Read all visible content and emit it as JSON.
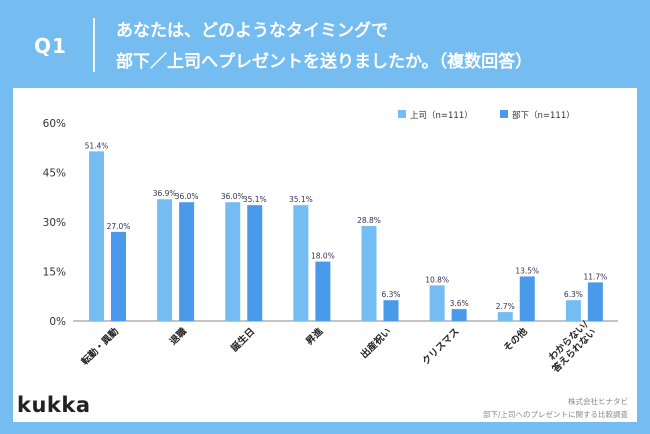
{
  "header": {
    "q_label": "Q1",
    "title_line1": "あなたは、どのようなタイミングで",
    "title_line2": "部下／上司へプレゼントを送りましたか。（複数回答）"
  },
  "brand": {
    "logo": "kukka"
  },
  "source": {
    "line1": "株式会社ヒナタビ",
    "line2": "部下/上司へのプレゼントに関する比較調査"
  },
  "colors": {
    "background": "#75bdf1",
    "boss": "#74bcf1",
    "subordinate": "#4a9aec",
    "text": "#333333"
  },
  "chart_data": {
    "type": "bar",
    "categories": [
      "転勤・異動",
      "退職",
      "誕生日",
      "昇進",
      "出産祝い",
      "クリスマス",
      "その他",
      "わからない/\n答えられない"
    ],
    "series": [
      {
        "name": "上司（n=111）",
        "values": [
          51.4,
          36.9,
          36.0,
          35.1,
          28.8,
          10.8,
          2.7,
          6.3
        ],
        "labels": [
          "51.4%",
          "36.9%",
          "36.0%",
          "35.1%",
          "28.8%",
          "10.8%",
          "2.7%",
          "6.3%"
        ]
      },
      {
        "name": "部下（n=111）",
        "values": [
          27.0,
          36.0,
          35.1,
          18.0,
          6.3,
          3.6,
          13.5,
          11.7
        ],
        "labels": [
          "27.0%",
          "36.0%",
          "35.1%",
          "18.0%",
          "6.3%",
          "3.6%",
          "13.5%",
          "11.7%"
        ]
      }
    ],
    "yticks": [
      0,
      15,
      30,
      45,
      60
    ],
    "ytick_labels": [
      "0%",
      "15%",
      "30%",
      "45%",
      "60%"
    ],
    "ylim": [
      0,
      60
    ],
    "legend": "top-right",
    "grid": false
  }
}
